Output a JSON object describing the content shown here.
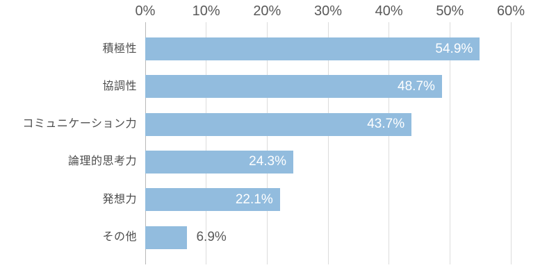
{
  "chart_data": {
    "type": "bar",
    "orientation": "horizontal",
    "title": "",
    "categories": [
      "積極性",
      "協調性",
      "コミュニケーション力",
      "論理的思考力",
      "発想力",
      "その他"
    ],
    "values": [
      54.9,
      48.7,
      43.7,
      24.3,
      22.1,
      6.9
    ],
    "value_labels": [
      "54.9%",
      "48.7%",
      "43.7%",
      "24.3%",
      "22.1%",
      "6.9%"
    ],
    "axis": {
      "position": "top",
      "min": 0,
      "max": 60,
      "ticks": [
        "0%",
        "10%",
        "20%",
        "30%",
        "40%",
        "50%",
        "60%"
      ],
      "grid": true
    },
    "legend": null,
    "colors": {
      "bar": "#92BCDE",
      "value_label_inside": "#FFFFFF",
      "value_label_outside": "#595959",
      "axis_label": "#595959",
      "category_label": "#4D4D4D",
      "gridline": "#DCDCDC",
      "axis_line": "#B8B8B8",
      "background": "#FFFFFF"
    }
  }
}
